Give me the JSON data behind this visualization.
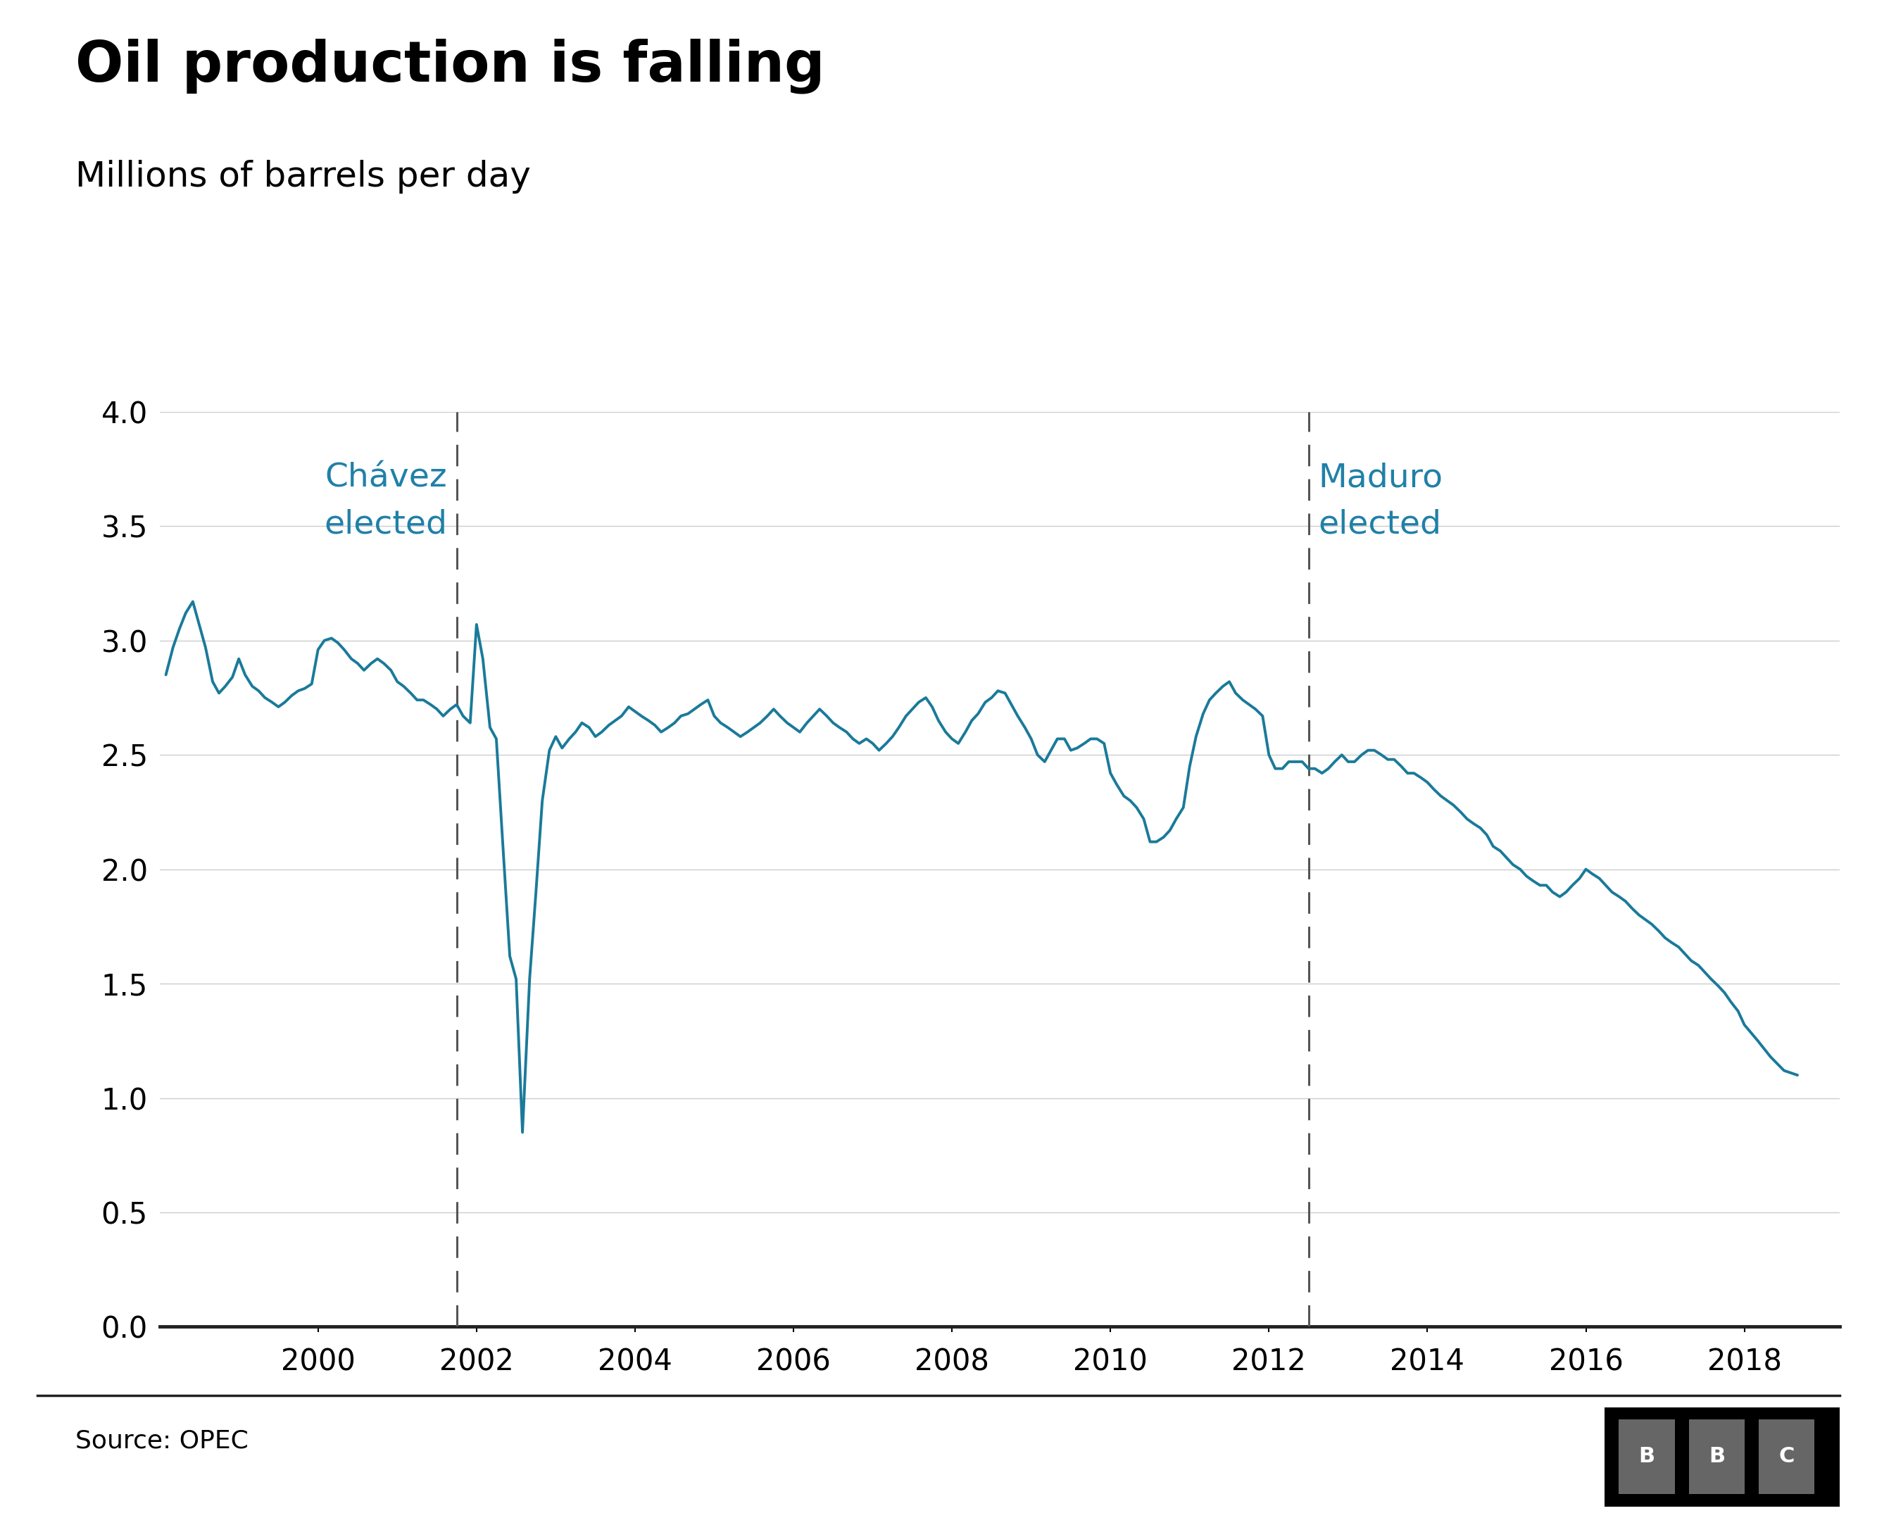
{
  "title": "Oil production is falling",
  "subtitle": "Millions of barrels per day",
  "source": "Source: OPEC",
  "line_color": "#1a7a9a",
  "background_color": "#ffffff",
  "title_fontsize": 58,
  "subtitle_fontsize": 36,
  "annotation_fontsize": 34,
  "tick_fontsize": 30,
  "source_fontsize": 26,
  "ylim": [
    0.0,
    4.0
  ],
  "yticks": [
    0.0,
    0.5,
    1.0,
    1.5,
    2.0,
    2.5,
    3.0,
    3.5,
    4.0
  ],
  "chavez_year": 2001.75,
  "maduro_year": 2012.5,
  "chavez_label": "Chávez\nelected",
  "maduro_label": "Maduro\nelected",
  "annotation_color": "#2080a8",
  "dashed_line_color": "#555555",
  "grid_color": "#cccccc",
  "bottom_line_color": "#222222",
  "xlim": [
    1998.0,
    2019.2
  ],
  "xticks": [
    2000,
    2002,
    2004,
    2006,
    2008,
    2010,
    2012,
    2014,
    2016,
    2018
  ],
  "series": {
    "dates": [
      1998.08,
      1998.17,
      1998.25,
      1998.33,
      1998.42,
      1998.5,
      1998.58,
      1998.67,
      1998.75,
      1998.83,
      1998.92,
      1999.0,
      1999.08,
      1999.17,
      1999.25,
      1999.33,
      1999.42,
      1999.5,
      1999.58,
      1999.67,
      1999.75,
      1999.83,
      1999.92,
      2000.0,
      2000.08,
      2000.17,
      2000.25,
      2000.33,
      2000.42,
      2000.5,
      2000.58,
      2000.67,
      2000.75,
      2000.83,
      2000.92,
      2001.0,
      2001.08,
      2001.17,
      2001.25,
      2001.33,
      2001.42,
      2001.5,
      2001.58,
      2001.67,
      2001.75,
      2001.83,
      2001.92,
      2002.0,
      2002.08,
      2002.17,
      2002.25,
      2002.33,
      2002.42,
      2002.5,
      2002.58,
      2002.67,
      2002.75,
      2002.83,
      2002.92,
      2003.0,
      2003.08,
      2003.17,
      2003.25,
      2003.33,
      2003.42,
      2003.5,
      2003.58,
      2003.67,
      2003.75,
      2003.83,
      2003.92,
      2004.0,
      2004.08,
      2004.17,
      2004.25,
      2004.33,
      2004.42,
      2004.5,
      2004.58,
      2004.67,
      2004.75,
      2004.83,
      2004.92,
      2005.0,
      2005.08,
      2005.17,
      2005.25,
      2005.33,
      2005.42,
      2005.5,
      2005.58,
      2005.67,
      2005.75,
      2005.83,
      2005.92,
      2006.0,
      2006.08,
      2006.17,
      2006.25,
      2006.33,
      2006.42,
      2006.5,
      2006.58,
      2006.67,
      2006.75,
      2006.83,
      2006.92,
      2007.0,
      2007.08,
      2007.17,
      2007.25,
      2007.33,
      2007.42,
      2007.5,
      2007.58,
      2007.67,
      2007.75,
      2007.83,
      2007.92,
      2008.0,
      2008.08,
      2008.17,
      2008.25,
      2008.33,
      2008.42,
      2008.5,
      2008.58,
      2008.67,
      2008.75,
      2008.83,
      2008.92,
      2009.0,
      2009.08,
      2009.17,
      2009.25,
      2009.33,
      2009.42,
      2009.5,
      2009.58,
      2009.67,
      2009.75,
      2009.83,
      2009.92,
      2010.0,
      2010.08,
      2010.17,
      2010.25,
      2010.33,
      2010.42,
      2010.5,
      2010.58,
      2010.67,
      2010.75,
      2010.83,
      2010.92,
      2011.0,
      2011.08,
      2011.17,
      2011.25,
      2011.33,
      2011.42,
      2011.5,
      2011.58,
      2011.67,
      2011.75,
      2011.83,
      2011.92,
      2012.0,
      2012.08,
      2012.17,
      2012.25,
      2012.33,
      2012.42,
      2012.5,
      2012.58,
      2012.67,
      2012.75,
      2012.83,
      2012.92,
      2013.0,
      2013.08,
      2013.17,
      2013.25,
      2013.33,
      2013.42,
      2013.5,
      2013.58,
      2013.67,
      2013.75,
      2013.83,
      2013.92,
      2014.0,
      2014.08,
      2014.17,
      2014.25,
      2014.33,
      2014.42,
      2014.5,
      2014.58,
      2014.67,
      2014.75,
      2014.83,
      2014.92,
      2015.0,
      2015.08,
      2015.17,
      2015.25,
      2015.33,
      2015.42,
      2015.5,
      2015.58,
      2015.67,
      2015.75,
      2015.83,
      2015.92,
      2016.0,
      2016.08,
      2016.17,
      2016.25,
      2016.33,
      2016.42,
      2016.5,
      2016.58,
      2016.67,
      2016.75,
      2016.83,
      2016.92,
      2017.0,
      2017.08,
      2017.17,
      2017.25,
      2017.33,
      2017.42,
      2017.5,
      2017.58,
      2017.67,
      2017.75,
      2017.83,
      2017.92,
      2018.0,
      2018.17,
      2018.33,
      2018.5,
      2018.67
    ],
    "values": [
      2.85,
      2.97,
      3.05,
      3.12,
      3.17,
      3.07,
      2.97,
      2.82,
      2.77,
      2.8,
      2.84,
      2.92,
      2.85,
      2.8,
      2.78,
      2.75,
      2.73,
      2.71,
      2.73,
      2.76,
      2.78,
      2.79,
      2.81,
      2.96,
      3.0,
      3.01,
      2.99,
      2.96,
      2.92,
      2.9,
      2.87,
      2.9,
      2.92,
      2.9,
      2.87,
      2.82,
      2.8,
      2.77,
      2.74,
      2.74,
      2.72,
      2.7,
      2.67,
      2.7,
      2.72,
      2.67,
      2.64,
      3.07,
      2.92,
      2.62,
      2.57,
      2.12,
      1.62,
      1.52,
      0.85,
      1.52,
      1.9,
      2.3,
      2.52,
      2.58,
      2.53,
      2.57,
      2.6,
      2.64,
      2.62,
      2.58,
      2.6,
      2.63,
      2.65,
      2.67,
      2.71,
      2.69,
      2.67,
      2.65,
      2.63,
      2.6,
      2.62,
      2.64,
      2.67,
      2.68,
      2.7,
      2.72,
      2.74,
      2.67,
      2.64,
      2.62,
      2.6,
      2.58,
      2.6,
      2.62,
      2.64,
      2.67,
      2.7,
      2.67,
      2.64,
      2.62,
      2.6,
      2.64,
      2.67,
      2.7,
      2.67,
      2.64,
      2.62,
      2.6,
      2.57,
      2.55,
      2.57,
      2.55,
      2.52,
      2.55,
      2.58,
      2.62,
      2.67,
      2.7,
      2.73,
      2.75,
      2.71,
      2.65,
      2.6,
      2.57,
      2.55,
      2.6,
      2.65,
      2.68,
      2.73,
      2.75,
      2.78,
      2.77,
      2.72,
      2.67,
      2.62,
      2.57,
      2.5,
      2.47,
      2.52,
      2.57,
      2.57,
      2.52,
      2.53,
      2.55,
      2.57,
      2.57,
      2.55,
      2.42,
      2.37,
      2.32,
      2.3,
      2.27,
      2.22,
      2.12,
      2.12,
      2.14,
      2.17,
      2.22,
      2.27,
      2.45,
      2.58,
      2.68,
      2.74,
      2.77,
      2.8,
      2.82,
      2.77,
      2.74,
      2.72,
      2.7,
      2.67,
      2.5,
      2.44,
      2.44,
      2.47,
      2.47,
      2.47,
      2.44,
      2.44,
      2.42,
      2.44,
      2.47,
      2.5,
      2.47,
      2.47,
      2.5,
      2.52,
      2.52,
      2.5,
      2.48,
      2.48,
      2.45,
      2.42,
      2.42,
      2.4,
      2.38,
      2.35,
      2.32,
      2.3,
      2.28,
      2.25,
      2.22,
      2.2,
      2.18,
      2.15,
      2.1,
      2.08,
      2.05,
      2.02,
      2.0,
      1.97,
      1.95,
      1.93,
      1.93,
      1.9,
      1.88,
      1.9,
      1.93,
      1.96,
      2.0,
      1.98,
      1.96,
      1.93,
      1.9,
      1.88,
      1.86,
      1.83,
      1.8,
      1.78,
      1.76,
      1.73,
      1.7,
      1.68,
      1.66,
      1.63,
      1.6,
      1.58,
      1.55,
      1.52,
      1.49,
      1.46,
      1.42,
      1.38,
      1.32,
      1.25,
      1.18,
      1.12,
      1.1
    ]
  }
}
